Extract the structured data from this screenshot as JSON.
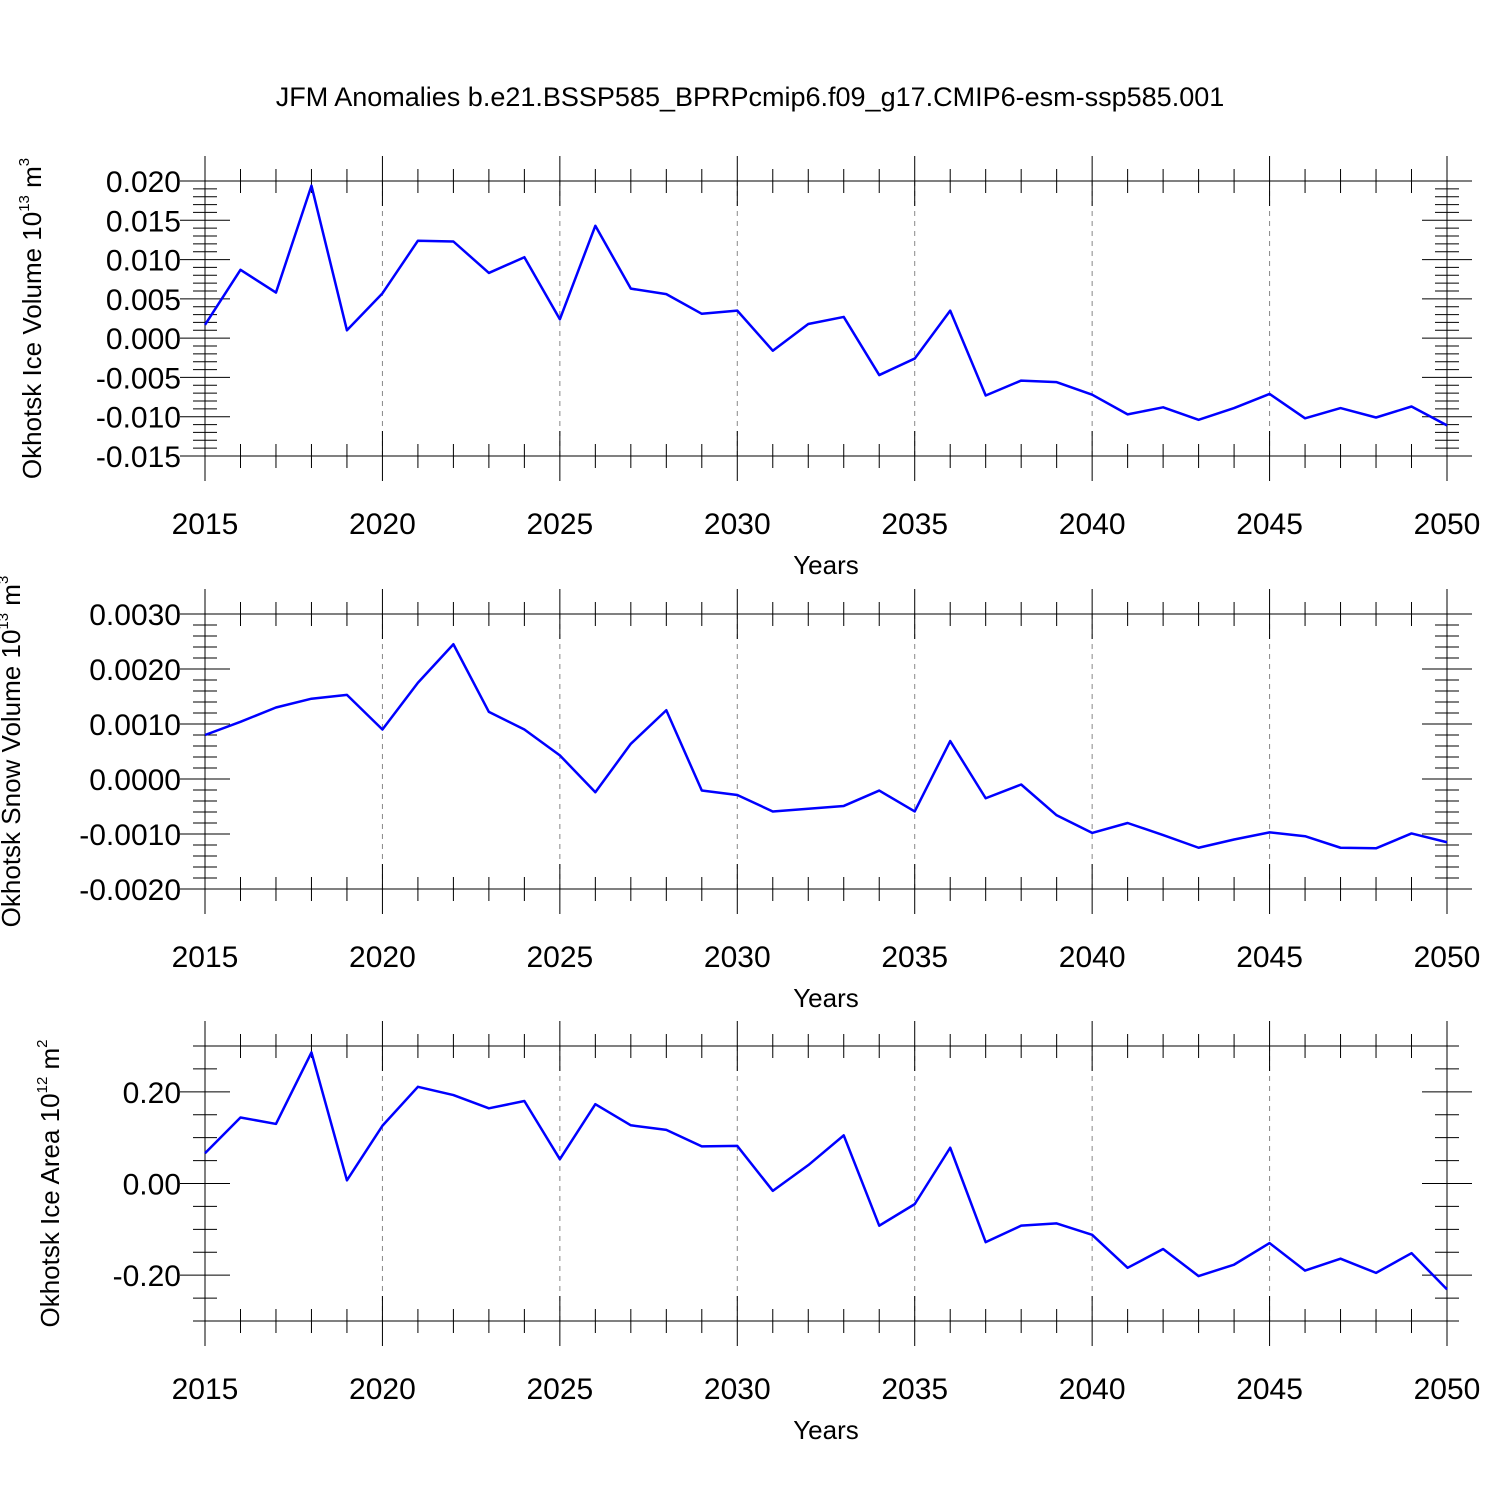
{
  "title": "JFM Anomalies b.e21.BSSP585_BPRPcmip6.f09_g17.CMIP6-esm-ssp585.001",
  "colors": {
    "line": "#0000ff",
    "axis": "#000000",
    "grid": "#888888"
  },
  "chart_data": [
    {
      "type": "line",
      "ylabel": {
        "text": "Okhotsk Ice Volume 10",
        "exp": "13",
        "unit": " m",
        "unit_exp": "3"
      },
      "xlabel": "Years",
      "xlim": [
        2015,
        2050
      ],
      "ylim": [
        -0.015,
        0.02
      ],
      "xticks": [
        2015,
        2020,
        2025,
        2030,
        2035,
        2040,
        2045,
        2050
      ],
      "yticks": [
        -0.015,
        -0.01,
        -0.005,
        0.0,
        0.005,
        0.01,
        0.015,
        0.02
      ],
      "ytick_labels": [
        "-0.015",
        "-0.010",
        "-0.005",
        "0.000",
        "0.005",
        "0.010",
        "0.015",
        "0.020"
      ],
      "ymin_step": 0.001,
      "grid": "dashed vertical at major x ticks",
      "series": [
        {
          "x": [
            2015,
            2016,
            2017,
            2018,
            2019,
            2020,
            2021,
            2022,
            2023,
            2024,
            2025,
            2026,
            2027,
            2028,
            2029,
            2030,
            2031,
            2032,
            2033,
            2034,
            2035,
            2036,
            2037,
            2038,
            2039,
            2040,
            2041,
            2042,
            2043,
            2044,
            2045,
            2046,
            2047,
            2048,
            2049,
            2050
          ],
          "values": [
            0.0017,
            0.0087,
            0.0058,
            0.0194,
            0.001,
            0.0057,
            0.0124,
            0.0123,
            0.0083,
            0.0103,
            0.0024,
            0.0143,
            0.0063,
            0.0056,
            0.0031,
            0.0035,
            -0.0016,
            0.0018,
            0.0027,
            -0.0047,
            -0.0026,
            0.0035,
            -0.0073,
            -0.0054,
            -0.0056,
            -0.0072,
            -0.0097,
            -0.0088,
            -0.0104,
            -0.0089,
            -0.0071,
            -0.0102,
            -0.0089,
            -0.0101,
            -0.0087,
            -0.0111
          ]
        }
      ]
    },
    {
      "type": "line",
      "ylabel": {
        "text": "Okhotsk Snow Volume 10",
        "exp": "13",
        "unit": " m",
        "unit_exp": "3"
      },
      "xlabel": "Years",
      "xlim": [
        2015,
        2050
      ],
      "ylim": [
        -0.002,
        0.003
      ],
      "xticks": [
        2015,
        2020,
        2025,
        2030,
        2035,
        2040,
        2045,
        2050
      ],
      "yticks": [
        -0.002,
        -0.001,
        0.0,
        0.001,
        0.002,
        0.003
      ],
      "ytick_labels": [
        "-0.0020",
        "-0.0010",
        "0.0000",
        "0.0010",
        "0.0020",
        "0.0030"
      ],
      "ymin_step": 0.0002,
      "grid": "dashed vertical at major x ticks",
      "series": [
        {
          "x": [
            2015,
            2016,
            2017,
            2018,
            2019,
            2020,
            2021,
            2022,
            2023,
            2024,
            2025,
            2026,
            2027,
            2028,
            2029,
            2030,
            2031,
            2032,
            2033,
            2034,
            2035,
            2036,
            2037,
            2038,
            2039,
            2040,
            2041,
            2042,
            2043,
            2044,
            2045,
            2046,
            2047,
            2048,
            2049,
            2050
          ],
          "values": [
            0.0008,
            0.00104,
            0.0013,
            0.00146,
            0.00153,
            0.0009,
            0.00175,
            0.00245,
            0.00122,
            0.0009,
            0.00043,
            -0.00024,
            0.00064,
            0.00125,
            -0.00021,
            -0.00029,
            -0.00059,
            -0.00054,
            -0.00049,
            -0.00021,
            -0.00059,
            0.00069,
            -0.00035,
            -0.0001,
            -0.00066,
            -0.00098,
            -0.0008,
            -0.00102,
            -0.00125,
            -0.0011,
            -0.00097,
            -0.00104,
            -0.00125,
            -0.00126,
            -0.00099,
            -0.00115
          ]
        }
      ]
    },
    {
      "type": "line",
      "ylabel": {
        "text": "Okhotsk Ice Area 10",
        "exp": "12",
        "unit": " m",
        "unit_exp": "2"
      },
      "xlabel": "Years",
      "xlim": [
        2015,
        2050
      ],
      "ylim": [
        -0.3,
        0.3
      ],
      "xticks": [
        2015,
        2020,
        2025,
        2030,
        2035,
        2040,
        2045,
        2050
      ],
      "yticks": [
        -0.2,
        0.0,
        0.2
      ],
      "ytick_labels": [
        "-0.20",
        "0.00",
        "0.20"
      ],
      "ymin_step": 0.05,
      "grid": "dashed vertical at major x ticks",
      "series": [
        {
          "x": [
            2015,
            2016,
            2017,
            2018,
            2019,
            2020,
            2021,
            2022,
            2023,
            2024,
            2025,
            2026,
            2027,
            2028,
            2029,
            2030,
            2031,
            2032,
            2033,
            2034,
            2035,
            2036,
            2037,
            2038,
            2039,
            2040,
            2041,
            2042,
            2043,
            2044,
            2045,
            2046,
            2047,
            2048,
            2049,
            2050
          ],
          "values": [
            0.066,
            0.144,
            0.13,
            0.286,
            0.007,
            0.126,
            0.211,
            0.193,
            0.164,
            0.18,
            0.053,
            0.173,
            0.127,
            0.117,
            0.081,
            0.082,
            -0.016,
            0.04,
            0.105,
            -0.092,
            -0.045,
            0.078,
            -0.128,
            -0.092,
            -0.087,
            -0.112,
            -0.184,
            -0.143,
            -0.202,
            -0.177,
            -0.13,
            -0.19,
            -0.164,
            -0.195,
            -0.152,
            -0.231
          ]
        }
      ]
    }
  ]
}
